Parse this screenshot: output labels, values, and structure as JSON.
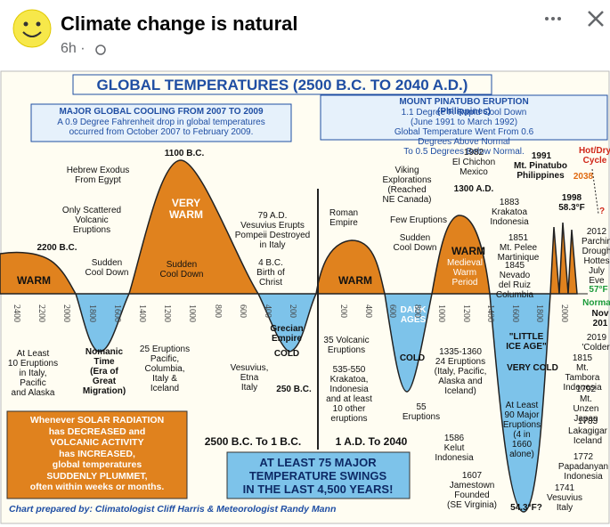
{
  "header": {
    "title": "Climate change is natural",
    "time": "6h ·"
  },
  "infographic": {
    "title": "GLOBAL TEMPERATURES (2500 B.C. TO 2040 A.D.)",
    "cooling_box": {
      "title": "MAJOR GLOBAL COOLING FROM 2007 TO 2009",
      "text": "A 0.9 Degree Fahrenheit drop in global temperatures\noccurred from October 2007 to February 2009."
    },
    "pinatubo_box": {
      "title": "MOUNT PINATUBO ERUPTION (Philippines)",
      "text": "1.1 Degree F. Rapid Cool Down (June 1991 to March 1992)\nGlobal Temperature Went From 0.6 Degrees Above Normal\nTo 0.5 Degrees Below Normal."
    },
    "labels": [
      "Hebrew Exodus\nFrom Egypt",
      "1100 B.C.",
      "Only Scattered\nVolcanic\nEruptions",
      "VERY\nWARM",
      "79 A.D.\nVesuvius Erupts\nPompeii Destroyed\nin Italy",
      "Roman\nEmpire",
      "Viking\nExplorations\n(Reached\nNE Canada)",
      "1300 A.D.",
      "1982\nEl Chichon\nMexico",
      "1991",
      "Mt. Pinatubo\nPhilippines",
      "2038",
      "Hot/Dry\nCycle",
      "1883\nKrakatoa\nIndonesia",
      "1998\n58.3°F",
      "?",
      "2012\nParchin\nDrough\nHottes\nJuly Eve",
      "2200 B.C.",
      "Sudden\nCool Down",
      "Sudden\nCool Down",
      "4 B.C.\nBirth of\nChrist",
      "Few Eruptions",
      "Sudden\nCool Down",
      "1851\nMt. Pelee\nMartinique",
      "WARM",
      "WARM",
      "WARM",
      "Medieval\nWarm\nPeriod",
      "1845\nNevado\ndel Ruiz\nColumbia",
      "57°F",
      "Norma",
      "Nov\n201",
      "2019\n'Colder'",
      "At Least\n10 Eruptions\nin Italy,\nPacific\nand Alaska",
      "Nomanic\nTime\n(Era of\nGreat\nMigration)",
      "25 Eruptions\nPacific,\nColumbia,\nItaly &\nIceland",
      "Grecian\nEmpire",
      "COLD",
      "Vesuvius,\nEtna\nItaly",
      "250 B.C.",
      "35 Volcanic\nEruptions",
      "DARK\nAGES",
      "COLD",
      "535-550\nKrakatoa,\nIndonesia\nand at least\n10 other\neruptions",
      "1335-1360\n24 Eruptions\n(Italy, Pacific,\nAlaska and\nIceland)",
      "55\nEruptions",
      "\"LITTLE\nICE AGE\"",
      "VERY COLD",
      "1815\nMt. Tambora\nIndonesia",
      "1792\nMt. Unzen\nJapan",
      "At Least\n90 Major\nEruptions\n(4 in\n1660\nalone)",
      "1783\nLakagigar\nIceland",
      "1772\nPapadanyan\nIndonesia",
      "1741\nVesuvius\nItaly",
      "1586\nKelut\nIndonesia",
      "1607\nJamestown\nFounded\n(SE Virginia)",
      "54.3°F?"
    ],
    "bc_years": [
      2400,
      2200,
      2000,
      1800,
      1600,
      1400,
      1200,
      1000,
      800,
      600,
      400,
      200
    ],
    "ad_years": [
      200,
      400,
      600,
      800,
      1000,
      1200,
      1400,
      1600,
      1800,
      2000
    ],
    "callout": "Whenever SOLAR RADIATION\nhas DECREASED and\nVOLCANIC ACTIVITY\nhas INCREASED,\nglobal temperatures\nSUDDENLY PLUMMET,\noften within weeks or months.",
    "era_bc": "2500 B.C. To 1 B.C.",
    "era_ad": "1 A.D. To 2040",
    "swings": "AT LEAST 75 MAJOR\nTEMPERATURE SWINGS\nIN THE LAST 4,500 YEARS!",
    "credit": "Chart prepared by: Climatologist Cliff Harris & Meteorologist Randy Mann"
  }
}
